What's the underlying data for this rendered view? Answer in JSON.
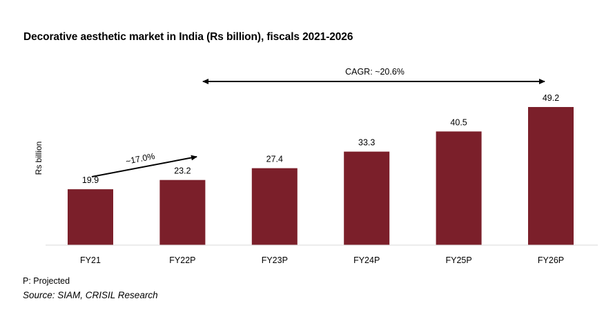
{
  "chart_data": {
    "type": "bar",
    "title": "Decorative aesthetic market in India (Rs billion), fiscals 2021-2026",
    "ylabel": "Rs billion",
    "xlabel": "",
    "categories": [
      "FY21",
      "FY22P",
      "FY23P",
      "FY24P",
      "FY25P",
      "FY26P"
    ],
    "values": [
      19.9,
      23.2,
      27.4,
      33.3,
      40.5,
      49.2
    ],
    "data_labels": [
      "19.9",
      "23.2",
      "27.4",
      "33.3",
      "40.5",
      "49.2"
    ],
    "ylim": [
      0,
      49.2
    ],
    "grid": false,
    "bar_color": "#7b1f2a",
    "annotations": {
      "cagr_overall": "CAGR: ~20.6%",
      "cagr_short": "~17.0%"
    },
    "footnote": "P: Projected",
    "source": "Source: SIAM, CRISIL Research"
  }
}
